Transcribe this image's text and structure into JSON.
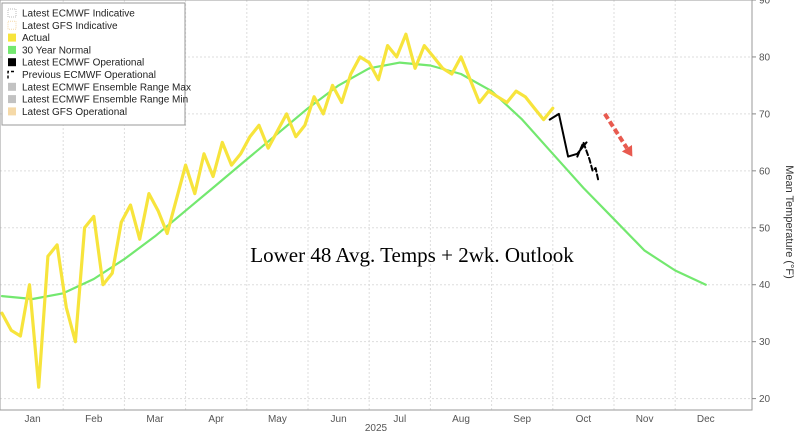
{
  "chart_data": {
    "type": "line",
    "title": "Lower 48 Avg. Temps + 2wk. Outlook",
    "ylabel": "Mean Temperature (°F)",
    "xlabel": "",
    "year_label": "2025",
    "ylim": [
      18,
      90
    ],
    "yticks": [
      20,
      30,
      40,
      50,
      60,
      70,
      80,
      90
    ],
    "months": [
      "Jan",
      "Feb",
      "Mar",
      "Apr",
      "May",
      "Jun",
      "Jul",
      "Aug",
      "Sep",
      "Oct",
      "Nov",
      "Dec"
    ],
    "legend_position": "top-left",
    "legend": [
      {
        "label": "Latest ECMWF Indicative",
        "swatch": "dotted",
        "color": "#bbbbbb"
      },
      {
        "label": "Latest GFS Indicative",
        "swatch": "dotted",
        "color": "#f5d9a8"
      },
      {
        "label": "Actual",
        "swatch": "solid",
        "color": "#f7e43c"
      },
      {
        "label": "30 Year Normal",
        "swatch": "solid",
        "color": "#73e86f"
      },
      {
        "label": "Latest ECMWF Operational",
        "swatch": "solid",
        "color": "#000000"
      },
      {
        "label": "Previous ECMWF Operational",
        "swatch": "dashed",
        "color": "#000000"
      },
      {
        "label": "Latest ECMWF Ensemble Range Max",
        "swatch": "solid",
        "color": "#c2c2c2"
      },
      {
        "label": "Latest ECMWF Ensemble Range Min",
        "swatch": "solid",
        "color": "#c2c2c2"
      },
      {
        "label": "Latest GFS Operational",
        "swatch": "solid",
        "color": "#f5d9a8"
      }
    ],
    "series": [
      {
        "name": "30 Year Normal",
        "color": "#73e86f",
        "x_month": [
          0,
          0.5,
          1,
          1.5,
          2,
          2.5,
          3,
          3.5,
          4,
          4.5,
          5,
          5.5,
          6,
          6.5,
          7,
          7.5,
          8,
          8.5,
          9,
          9.5,
          10,
          10.5,
          11,
          11.5
        ],
        "y": [
          38,
          37.5,
          38.5,
          41,
          44.5,
          48.5,
          53,
          57.5,
          62,
          66.5,
          71,
          75,
          78,
          79,
          78.5,
          77,
          74,
          69,
          63,
          57,
          51.5,
          46,
          42.5,
          40
        ]
      },
      {
        "name": "Actual",
        "color": "#f7e43c",
        "x_month": [
          0,
          0.15,
          0.3,
          0.45,
          0.6,
          0.75,
          0.9,
          1.05,
          1.2,
          1.35,
          1.5,
          1.65,
          1.8,
          1.95,
          2.1,
          2.25,
          2.4,
          2.55,
          2.7,
          2.85,
          3.0,
          3.15,
          3.3,
          3.45,
          3.6,
          3.75,
          3.9,
          4.05,
          4.2,
          4.35,
          4.5,
          4.65,
          4.8,
          4.95,
          5.1,
          5.25,
          5.4,
          5.55,
          5.7,
          5.85,
          6.0,
          6.15,
          6.3,
          6.45,
          6.6,
          6.75,
          6.9,
          7.05,
          7.2,
          7.35,
          7.5,
          7.65,
          7.8,
          7.95,
          8.1,
          8.25,
          8.4,
          8.55,
          8.7,
          8.85,
          9.0
        ],
        "y": [
          35,
          32,
          31,
          40,
          22,
          45,
          47,
          36,
          30,
          50,
          52,
          40,
          42,
          51,
          54,
          48,
          56,
          53,
          49,
          55,
          61,
          56,
          63,
          59,
          65,
          61,
          63,
          66,
          68,
          64,
          67,
          70,
          66,
          68,
          73,
          70,
          75,
          72,
          77,
          80,
          79,
          76,
          82,
          80,
          84,
          78,
          82,
          80,
          78,
          77,
          80,
          76,
          72,
          74,
          73,
          72,
          74,
          73,
          71,
          69,
          71
        ]
      },
      {
        "name": "Latest ECMWF Operational",
        "color": "#000000",
        "x_month": [
          8.95,
          9.1,
          9.25,
          9.4,
          9.55
        ],
        "y": [
          69,
          70,
          62.5,
          63,
          65
        ]
      },
      {
        "name": "Previous ECMWF Operational",
        "color": "#000000",
        "x_month": [
          9.4,
          9.5,
          9.6,
          9.65,
          9.7,
          9.75
        ],
        "y": [
          62.5,
          65,
          62,
          60,
          60.5,
          58
        ]
      }
    ],
    "annotation_arrow": {
      "color": "#e85a4f",
      "from": [
        9.85,
        70
      ],
      "to": [
        10.3,
        62.5
      ]
    }
  }
}
